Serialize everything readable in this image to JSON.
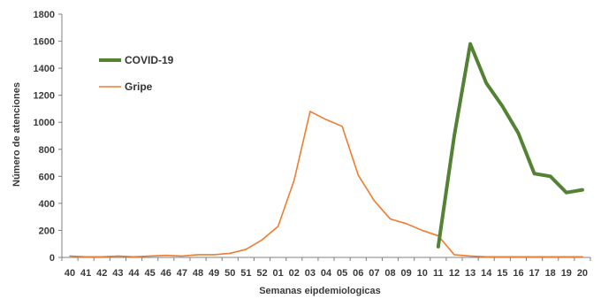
{
  "chart_data": {
    "type": "line",
    "xlabel": "Semanas eipdemiologicas",
    "ylabel": "Número de atenciones",
    "ylim": [
      0,
      1800
    ],
    "yticks": [
      0,
      200,
      400,
      600,
      800,
      1000,
      1200,
      1400,
      1600,
      1800
    ],
    "grid": false,
    "legend": "top-left",
    "categories": [
      "40",
      "41",
      "42",
      "43",
      "44",
      "45",
      "46",
      "47",
      "48",
      "49",
      "50",
      "51",
      "52",
      "01",
      "02",
      "03",
      "04",
      "05",
      "06",
      "07",
      "08",
      "09",
      "10",
      "11",
      "12",
      "13",
      "14",
      "15",
      "16",
      "17",
      "18",
      "19",
      "20"
    ],
    "series": [
      {
        "name": "COVID-19",
        "color": "#548235",
        "values": [
          null,
          null,
          null,
          null,
          null,
          null,
          null,
          null,
          null,
          null,
          null,
          null,
          null,
          null,
          null,
          null,
          null,
          null,
          null,
          null,
          null,
          null,
          null,
          80,
          900,
          1580,
          1290,
          1120,
          920,
          620,
          600,
          480,
          500
        ]
      },
      {
        "name": "Gripe",
        "color": "#ed7d31",
        "values": [
          10,
          5,
          5,
          10,
          5,
          10,
          15,
          10,
          20,
          20,
          30,
          60,
          130,
          230,
          570,
          1080,
          1020,
          970,
          610,
          420,
          285,
          250,
          200,
          160,
          20,
          10,
          5,
          5,
          5,
          5,
          5,
          5,
          5
        ]
      }
    ]
  }
}
